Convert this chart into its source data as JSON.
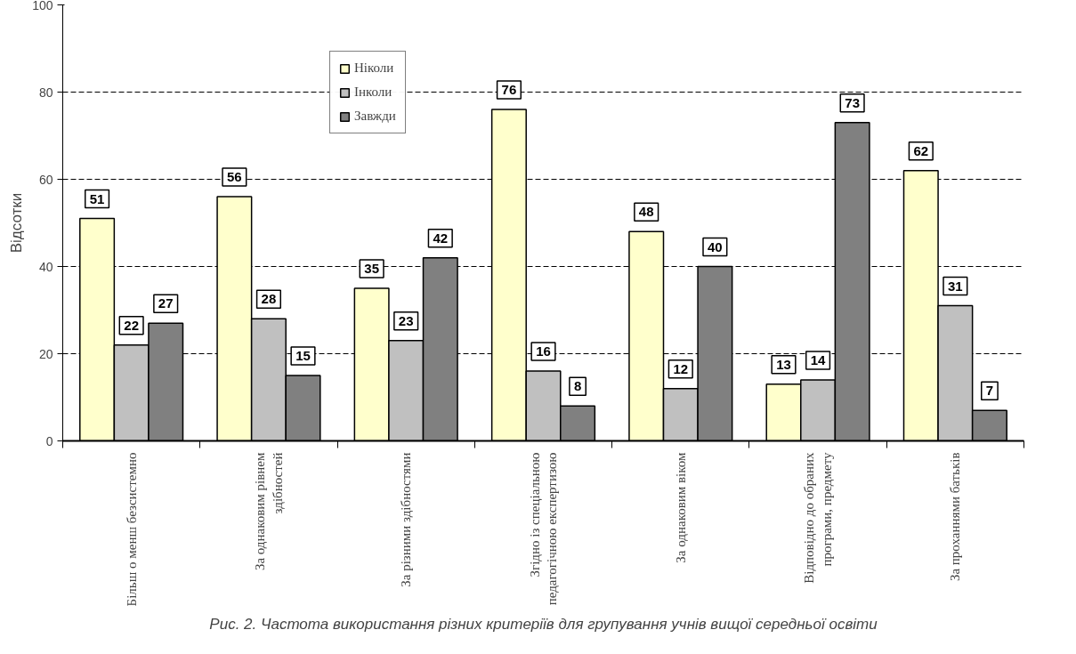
{
  "chart_data": {
    "type": "bar",
    "ylabel": "Відсотки",
    "categories": [
      "Більш о менш безсистемно",
      "За однаковим рівнем здібностей",
      "За різними здібностями",
      "Згідно із спеціальною педагогічною експертизою",
      "За однаковим віком",
      "Відповідно до обраних програми, предмету",
      "За проханнями батьків"
    ],
    "series": [
      {
        "name": "Ніколи",
        "color": "#ffffcc",
        "values": [
          51,
          56,
          35,
          76,
          48,
          13,
          62
        ]
      },
      {
        "name": "Інколи",
        "color": "#c0c0c0",
        "values": [
          22,
          28,
          23,
          16,
          12,
          14,
          31
        ]
      },
      {
        "name": "Завжди",
        "color": "#808080",
        "values": [
          27,
          15,
          42,
          8,
          40,
          73,
          7
        ]
      }
    ],
    "ylim": [
      0,
      100
    ],
    "yticks": [
      0,
      20,
      40,
      60,
      80,
      100
    ],
    "grid": "y",
    "legend": "top",
    "data_labels": true,
    "annotations": [
      "Рис. 2. Частота використання різних критеріїв для групування учнів вищої середньої освіти"
    ]
  }
}
